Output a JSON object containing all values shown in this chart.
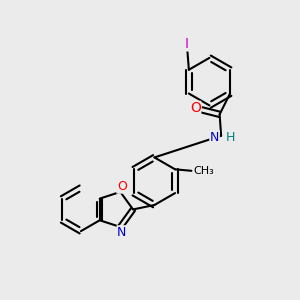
{
  "background_color": "#ebebeb",
  "bond_color": "#000000",
  "atom_colors": {
    "O": "#ff0000",
    "N": "#0000cc",
    "I": "#cc00cc",
    "H": "#008080",
    "C": "#000000"
  },
  "figsize": [
    3.0,
    3.0
  ],
  "dpi": 100
}
